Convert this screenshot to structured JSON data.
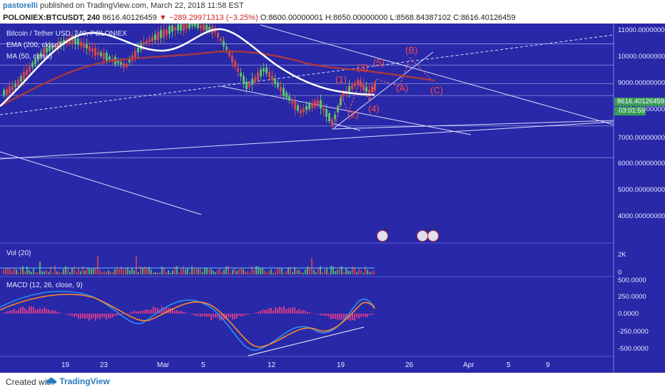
{
  "header": {
    "author": "pastorelli",
    "published_text": "published on TradingView.com, March 22, 2018 11:58 EST",
    "symbol": "POLONIEX:BTCUSDT, 240",
    "last_price": "8616.40126459",
    "change_arrow": "▼",
    "change": "−289.29971313 (−3.25%)",
    "ohlc": "O:8600.00000001 H:8650.00000000 L:8568.84387102 C:8616.40126459"
  },
  "legend": {
    "title": "Bitcoin / Tether USD, 240, POLONIEX",
    "ema": "EMA (200, close)",
    "ma": "MA (50, close)",
    "vol": "Vol (20)",
    "macd": "MACD (12, 26, close, 9)"
  },
  "price_axis": {
    "ticks": [
      "11000.00000000",
      "10000.00000000",
      "9000.00000000",
      "8000.00000000",
      "7000.00000000",
      "6000.00000000",
      "5000.00000000",
      "4000.00000000"
    ],
    "current_price": "8616.40126459",
    "countdown": "03:01:59"
  },
  "vol_axis": {
    "ticks": [
      "2K",
      "0"
    ]
  },
  "macd_axis": {
    "ticks": [
      "500.0000",
      "250.0000",
      "0.0000",
      "-250.0000",
      "-500.0000"
    ]
  },
  "time_axis": {
    "ticks": [
      "19",
      "23",
      "Mar",
      "5",
      "12",
      "19",
      "26",
      "Apr",
      "5",
      "9"
    ]
  },
  "wave_labels": [
    "(1)",
    "(2)",
    "(3)",
    "(4)",
    "(5)",
    "(A)",
    "(B)",
    "(C)"
  ],
  "events": [
    "5",
    "4",
    "6"
  ],
  "footer": {
    "created_with": "Created with",
    "brand": "TradingView"
  },
  "colors": {
    "background": "#2828a8",
    "up_candle": "#5ec06a",
    "down_candle": "#d04848",
    "ema_line": "#b03838",
    "ma_line": "#ffffff",
    "macd_line": "#2d8df0",
    "signal_line": "#ff8a2a",
    "wave_labels": "#ff4848"
  },
  "chart_data": {
    "type": "line",
    "title": "Bitcoin / Tether USD, 240, POLONIEX",
    "x": [
      "Feb 19",
      "Feb 23",
      "Mar 1",
      "Mar 5",
      "Mar 12",
      "Mar 19",
      "Mar 22"
    ],
    "series": [
      {
        "name": "Price",
        "values": [
          10500,
          10200,
          10800,
          11000,
          9000,
          7400,
          8616
        ]
      },
      {
        "name": "EMA (200, close)",
        "values": [
          9900,
          10300,
          10350,
          10300,
          10100,
          9500,
          9300
        ]
      },
      {
        "name": "MA (50, close)",
        "values": [
          10400,
          10650,
          10400,
          10900,
          9800,
          8600,
          8550
        ]
      }
    ],
    "ylim": [
      3000,
      11000
    ]
  }
}
